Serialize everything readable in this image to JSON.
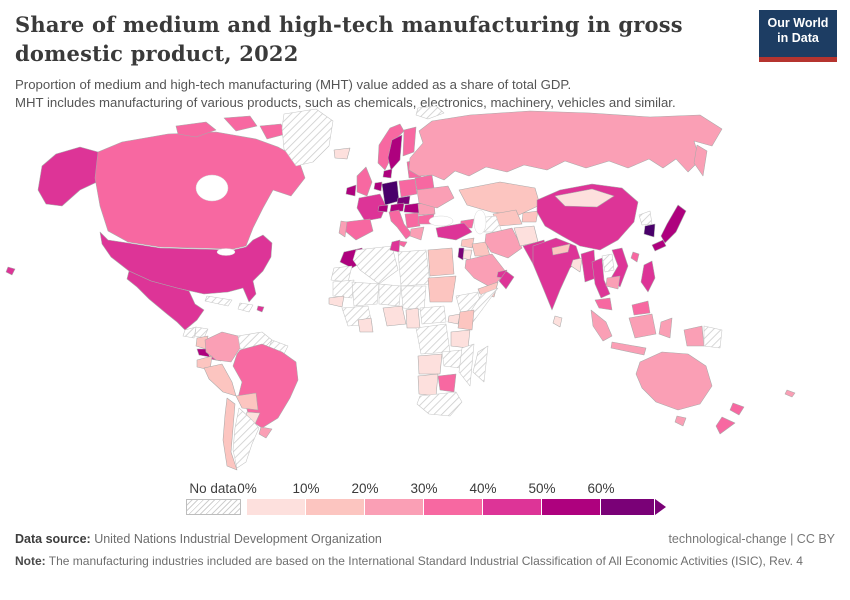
{
  "header": {
    "title": "Share of medium and high-tech manufacturing in gross domestic product, 2022",
    "subtitle1": "Proportion of medium and high-tech manufacturing (MHT) value added as a share of total GDP.",
    "subtitle2": "MHT includes manufacturing of various products, such as chemicals, electronics, machinery, vehicles and similar.",
    "logo": {
      "line1": "Our World",
      "line2": "in Data",
      "bg_color": "#1d3d63",
      "accent_color": "#b5342f"
    }
  },
  "legend": {
    "no_data_label": "No data",
    "tick_labels": [
      "0%",
      "10%",
      "20%",
      "30%",
      "40%",
      "50%",
      "60%"
    ],
    "bins": [
      {
        "range": "0-10%",
        "color": "#fde0dd"
      },
      {
        "range": "10-20%",
        "color": "#fcc5c0"
      },
      {
        "range": "20-30%",
        "color": "#fa9fb5"
      },
      {
        "range": "30-40%",
        "color": "#f768a1"
      },
      {
        "range": "40-50%",
        "color": "#dd3497"
      },
      {
        "range": "50-60%",
        "color": "#ae017e"
      },
      {
        "range": "60%+",
        "color": "#7a0177"
      }
    ]
  },
  "map": {
    "fills": [
      {
        "label": "0-10%",
        "color": "#fde0dd",
        "countries": [
          "iceland",
          "mongolia",
          "afghanistan",
          "bangladesh",
          "sri_lanka",
          "paraguay",
          "senegal",
          "ghana",
          "nigeria",
          "cameroon",
          "uganda",
          "tanzania",
          "angola",
          "namibia",
          "jordan"
        ]
      },
      {
        "label": "10-20%",
        "color": "#fcc5c0",
        "countries": [
          "kazakhstan",
          "uzbekistan",
          "kyrgyzstan",
          "ecuador",
          "peru",
          "bolivia",
          "chile",
          "nicaragua",
          "egypt",
          "sudan",
          "kenya",
          "yemen",
          "syria",
          "iraq",
          "nepal"
        ]
      },
      {
        "label": "20-30%",
        "color": "#fa9fb5",
        "countries": [
          "colombia",
          "uruguay",
          "russia",
          "ukraine",
          "greece",
          "portugal",
          "iran",
          "saudi_arabia",
          "indonesia",
          "australia",
          "cambodia",
          "romania",
          "new_caledonia"
        ]
      },
      {
        "label": "30-40%",
        "color": "#f768a1",
        "countries": [
          "canada",
          "brazil",
          "spain",
          "italy",
          "poland",
          "uk",
          "finland",
          "norway",
          "belarus",
          "baltics",
          "serbia",
          "bulgaria",
          "malaysia",
          "taiwan",
          "new_zealand",
          "botswana",
          "caucasus"
        ]
      },
      {
        "label": "40-50%",
        "color": "#dd3497",
        "countries": [
          "usa",
          "hawaii",
          "mexico",
          "france",
          "turkey",
          "tunisia",
          "china",
          "india",
          "pakistan",
          "myanmar",
          "thailand",
          "vietnam",
          "philippines",
          "oman",
          "uae",
          "panama",
          "puerto_rico"
        ]
      },
      {
        "label": "50-60%",
        "color": "#ae017e",
        "countries": [
          "ireland",
          "sweden",
          "denmark",
          "switzerland",
          "austria",
          "hungary",
          "slovenia",
          "netherlands",
          "morocco",
          "japan",
          "costa_rica"
        ]
      },
      {
        "label": "60%+",
        "color": "#7a0177",
        "countries": [
          "czechia",
          "israel"
        ]
      },
      {
        "label": "60%+ (highest)",
        "color": "#49006a",
        "countries": [
          "germany",
          "south_korea"
        ]
      },
      {
        "label": "No data",
        "color": "hatch",
        "countries": [
          "greenland",
          "svalbard",
          "cuba",
          "hispaniola",
          "guatemala",
          "honduras",
          "venezuela",
          "guyanas",
          "argentina",
          "western_sahara",
          "mauritania",
          "mali",
          "niger",
          "chad",
          "algeria",
          "libya",
          "guinea_region",
          "central_africa",
          "drc",
          "ethiopia",
          "somalia",
          "zambia",
          "mozambique",
          "south_africa",
          "madagascar",
          "turkmenistan",
          "laos",
          "north_korea",
          "papua_new_guinea"
        ]
      }
    ]
  },
  "footer": {
    "source_label": "Data source:",
    "source_value": " United Nations Industrial Development Organization",
    "attribution": "technological-change | CC BY",
    "note_label": "Note:",
    "note_value": " The manufacturing industries included are based on the International Standard Industrial Classification of All Economic Activities (ISIC), Rev. 4"
  },
  "chart_data": {
    "type": "heatmap",
    "subtype": "choropleth-world-map",
    "title": "Share of medium and high-tech manufacturing in gross domestic product, 2022",
    "unit": "% of total GDP",
    "legend_bins": [
      "0-10%",
      "10-20%",
      "20-30%",
      "30-40%",
      "40-50%",
      "50-60%",
      "60%+",
      "No data"
    ],
    "bin_colors": [
      "#fde0dd",
      "#fcc5c0",
      "#fa9fb5",
      "#f768a1",
      "#dd3497",
      "#ae017e",
      "#7a0177",
      "hatched"
    ],
    "values": {
      "United States": "40-50%",
      "Canada": "30-40%",
      "Mexico": "40-50%",
      "Greenland": "No data",
      "Guatemala": "No data",
      "Honduras": "No data",
      "Nicaragua": "10-20%",
      "Costa Rica": "50-60%",
      "Panama": "40-50%",
      "Cuba": "No data",
      "Colombia": "20-30%",
      "Venezuela": "No data",
      "Ecuador": "10-20%",
      "Peru": "10-20%",
      "Brazil": "30-40%",
      "Bolivia": "10-20%",
      "Paraguay": "0-10%",
      "Uruguay": "20-30%",
      "Chile": "10-20%",
      "Argentina": "No data",
      "Iceland": "0-10%",
      "Ireland": "50-60%",
      "United Kingdom": "30-40%",
      "Norway": "30-40%",
      "Sweden": "50-60%",
      "Finland": "30-40%",
      "Denmark": "50-60%",
      "France": "40-50%",
      "Spain": "30-40%",
      "Portugal": "20-30%",
      "Germany": "60%+",
      "Switzerland": "50-60%",
      "Austria": "50-60%",
      "Czechia": "60%+",
      "Poland": "30-40%",
      "Italy": "30-40%",
      "Hungary": "50-60%",
      "Slovenia": "50-60%",
      "Romania": "20-30%",
      "Ukraine": "20-30%",
      "Belarus": "30-40%",
      "Baltic states": "30-40%",
      "Russia": "20-30%",
      "Turkey": "40-50%",
      "Greece": "20-30%",
      "Serbia": "30-40%",
      "Bulgaria": "30-40%",
      "Morocco": "50-60%",
      "Tunisia": "40-50%",
      "Algeria": "No data",
      "Libya": "No data",
      "Egypt": "10-20%",
      "Sudan": "10-20%",
      "Mali": "No data",
      "Niger": "No data",
      "Chad": "No data",
      "Senegal": "0-10%",
      "Ghana": "0-10%",
      "Nigeria": "0-10%",
      "Cameroon": "0-10%",
      "DR Congo": "No data",
      "Ethiopia": "No data",
      "Somalia": "No data",
      "Kenya": "10-20%",
      "Uganda": "0-10%",
      "Tanzania": "0-10%",
      "Angola": "0-10%",
      "Zambia": "No data",
      "Mozambique": "No data",
      "Namibia": "0-10%",
      "Botswana": "30-40%",
      "South Africa": "No data",
      "Madagascar": "No data",
      "Saudi Arabia": "20-30%",
      "Yemen": "10-20%",
      "Oman": "40-50%",
      "United Arab Emirates": "40-50%",
      "Israel": "60%+",
      "Jordan": "0-10%",
      "Syria": "10-20%",
      "Iraq": "10-20%",
      "Iran": "20-30%",
      "Kazakhstan": "10-20%",
      "Uzbekistan": "10-20%",
      "Turkmenistan": "No data",
      "Afghanistan": "0-10%",
      "Pakistan": "40-50%",
      "India": "40-50%",
      "Nepal": "10-20%",
      "Bangladesh": "0-10%",
      "Sri Lanka": "0-10%",
      "China": "40-50%",
      "Mongolia": "0-10%",
      "Japan": "50-60%",
      "South Korea": "60%+",
      "North Korea": "No data",
      "Myanmar": "40-50%",
      "Thailand": "40-50%",
      "Laos": "No data",
      "Vietnam": "40-50%",
      "Cambodia": "20-30%",
      "Malaysia": "30-40%",
      "Philippines": "40-50%",
      "Indonesia": "20-30%",
      "Papua New Guinea": "No data",
      "Australia": "20-30%",
      "New Zealand": "30-40%",
      "Taiwan": "30-40%"
    }
  }
}
